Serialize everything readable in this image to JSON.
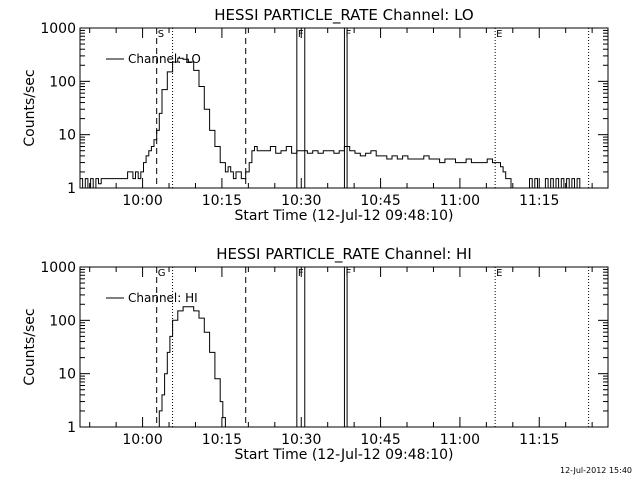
{
  "timestamp": "12-Jul-2012 15:40",
  "chart_data": [
    {
      "type": "line",
      "title": "HESSI PARTICLE_RATE Channel: LO",
      "xlabel": "Start Time (12-Jul-12 09:48:10)",
      "ylabel": "Counts/sec",
      "yscale": "log",
      "ylim": [
        1,
        1000
      ],
      "xlim": [
        "09:48:10",
        "11:28:00"
      ],
      "x_ticks": [
        "10:00",
        "10:15",
        "10:30",
        "10:45",
        "11:00",
        "11:15"
      ],
      "y_ticks": [
        "1",
        "10",
        "100",
        "1000"
      ],
      "legend": {
        "position": "top-left",
        "entries": [
          "Channel: LO"
        ]
      },
      "grid": false,
      "markers": [
        {
          "label": "S",
          "time": "10:02:40",
          "style": "dashed"
        },
        {
          "label": "",
          "time": "10:05:40",
          "style": "dotted"
        },
        {
          "label": "",
          "time": "10:19:30",
          "style": "dashed"
        },
        {
          "label": "F",
          "time": "10:29:10",
          "style": "solid"
        },
        {
          "label": "",
          "time": "10:30:40",
          "style": "solid"
        },
        {
          "label": "F",
          "time": "10:38:10",
          "style": "solid"
        },
        {
          "label": "",
          "time": "10:38:40",
          "style": "solid"
        },
        {
          "label": "E",
          "time": "11:06:40",
          "style": "dotted"
        },
        {
          "label": "",
          "time": "11:24:20",
          "style": "dotted"
        }
      ],
      "series": [
        {
          "name": "Channel: LO",
          "x": [
            "09:48:10",
            "09:48:40",
            "09:49:10",
            "09:49:40",
            "09:50:10",
            "09:50:40",
            "09:51:10",
            "09:51:40",
            "09:52:10",
            "09:52:40",
            "09:53:10",
            "09:55:40",
            "09:57:10",
            "09:58:10",
            "09:58:40",
            "09:59:10",
            "09:59:40",
            "10:00:10",
            "10:00:40",
            "10:01:10",
            "10:01:40",
            "10:02:10",
            "10:02:40",
            "10:03:10",
            "10:03:40",
            "10:04:40",
            "10:05:40",
            "10:06:40",
            "10:07:40",
            "10:08:40",
            "10:09:40",
            "10:10:40",
            "10:11:40",
            "10:12:40",
            "10:13:40",
            "10:14:40",
            "10:15:40",
            "10:16:10",
            "10:16:40",
            "10:17:10",
            "10:17:40",
            "10:18:40",
            "10:19:30",
            "10:20:10",
            "10:20:40",
            "10:21:10",
            "10:21:40",
            "10:22:10",
            "10:23:10",
            "10:24:10",
            "10:25:10",
            "10:26:10",
            "10:27:10",
            "10:28:10",
            "10:29:10",
            "10:30:10",
            "10:31:10",
            "10:32:10",
            "10:33:10",
            "10:34:10",
            "10:35:10",
            "10:36:10",
            "10:37:10",
            "10:38:10",
            "10:39:10",
            "10:40:10",
            "10:41:10",
            "10:42:10",
            "10:43:10",
            "10:44:10",
            "10:45:10",
            "10:46:10",
            "10:47:10",
            "10:48:10",
            "10:49:10",
            "10:50:10",
            "10:51:10",
            "10:52:10",
            "10:53:10",
            "10:54:10",
            "10:55:10",
            "10:56:10",
            "10:57:10",
            "10:58:10",
            "10:59:10",
            "11:00:10",
            "11:01:10",
            "11:02:10",
            "11:03:10",
            "11:04:10",
            "11:05:10",
            "11:06:10",
            "11:07:10",
            "11:07:40",
            "11:08:10",
            "11:08:40",
            "11:09:10",
            "11:09:40",
            "11:10:10",
            "11:13:10",
            "11:13:40",
            "11:14:10",
            "11:14:40",
            "11:16:10",
            "11:16:40",
            "11:17:10",
            "11:17:40",
            "11:18:10",
            "11:18:40",
            "11:19:10",
            "11:19:40",
            "11:20:10",
            "11:20:40",
            "11:21:10",
            "11:21:40",
            "11:22:10",
            "11:22:40",
            "11:23:10"
          ],
          "y": [
            1,
            1.5,
            1,
            1.5,
            1,
            1.5,
            1,
            1.5,
            1.2,
            1.5,
            1.5,
            1.5,
            1.5,
            2,
            1.5,
            2,
            1.5,
            2,
            3,
            4,
            5,
            6,
            8,
            12,
            25,
            70,
            150,
            230,
            270,
            260,
            230,
            160,
            80,
            30,
            12,
            6,
            3,
            2,
            2.5,
            2,
            1.5,
            2,
            1.5,
            2,
            3,
            5,
            6,
            5,
            5,
            5,
            6,
            4.5,
            5,
            6,
            4.5,
            5,
            5,
            4.5,
            5,
            4.5,
            5,
            5,
            4.5,
            5,
            6,
            5,
            4.5,
            4,
            4.5,
            5,
            4,
            4,
            3.5,
            4,
            3.5,
            4,
            3.5,
            3.5,
            3.5,
            4,
            3.5,
            3.5,
            3,
            3.5,
            3.5,
            3,
            3,
            3.5,
            3,
            3,
            3,
            3.5,
            3,
            3,
            2.5,
            2,
            1.5,
            1.5,
            1,
            1,
            1.5,
            1,
            1.5,
            1,
            1.5,
            1,
            1.5,
            1,
            1.5,
            1,
            1.5,
            1,
            1.5,
            1,
            1.5,
            1,
            1.5,
            1
          ]
        }
      ]
    },
    {
      "type": "line",
      "title": "HESSI PARTICLE_RATE Channel: HI",
      "xlabel": "Start Time (12-Jul-12 09:48:10)",
      "ylabel": "Counts/sec",
      "yscale": "log",
      "ylim": [
        1,
        1000
      ],
      "xlim": [
        "09:48:10",
        "11:28:00"
      ],
      "x_ticks": [
        "10:00",
        "10:15",
        "10:30",
        "10:45",
        "11:00",
        "11:15"
      ],
      "y_ticks": [
        "1",
        "10",
        "100",
        "1000"
      ],
      "legend": {
        "position": "top-left",
        "entries": [
          "Channel: HI"
        ]
      },
      "grid": false,
      "markers": [
        {
          "label": "G",
          "time": "10:02:40",
          "style": "dashed"
        },
        {
          "label": "",
          "time": "10:05:40",
          "style": "dotted"
        },
        {
          "label": "",
          "time": "10:19:30",
          "style": "dashed"
        },
        {
          "label": "F",
          "time": "10:29:10",
          "style": "solid"
        },
        {
          "label": "",
          "time": "10:30:40",
          "style": "solid"
        },
        {
          "label": "F",
          "time": "10:38:10",
          "style": "solid"
        },
        {
          "label": "",
          "time": "10:38:40",
          "style": "solid"
        },
        {
          "label": "E",
          "time": "11:06:40",
          "style": "dotted"
        },
        {
          "label": "",
          "time": "11:24:20",
          "style": "dotted"
        }
      ],
      "series": [
        {
          "name": "Channel: HI",
          "x": [
            "10:03:10",
            "10:03:40",
            "10:04:10",
            "10:04:40",
            "10:05:10",
            "10:05:40",
            "10:06:40",
            "10:07:40",
            "10:08:40",
            "10:09:40",
            "10:10:40",
            "10:11:40",
            "10:12:40",
            "10:13:40",
            "10:14:40",
            "10:15:10",
            "10:15:40",
            "10:16:10"
          ],
          "y": [
            1,
            2,
            4,
            10,
            25,
            50,
            100,
            150,
            180,
            180,
            150,
            110,
            60,
            25,
            8,
            3,
            1.5,
            1
          ]
        }
      ]
    }
  ]
}
